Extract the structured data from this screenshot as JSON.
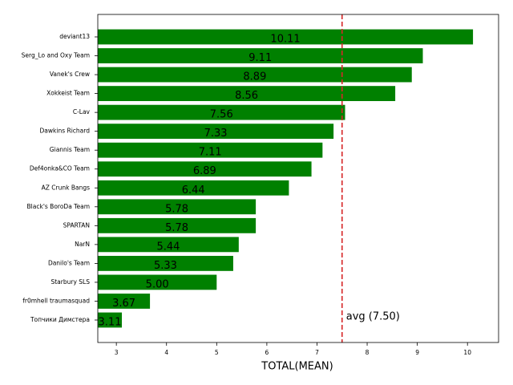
{
  "chart_data": {
    "type": "barh",
    "xlabel": "TOTAL(MEAN)",
    "categories": [
      "deviant13",
      "Serg_Lo and Oxy Team",
      "Vanek's Crew",
      "Xokkeist Team",
      "C-Lav",
      "Dawkins Richard",
      "Giannis Team",
      "Def4onka&CO Team",
      "AZ Crunk Bangs",
      "Black's BoroDa Team",
      "SPARTAN",
      "NarN",
      "Danilo's Team",
      "Starbury SLS",
      "fr0mhell traumasquad",
      "Топчики Димстера"
    ],
    "values": [
      10.11,
      9.11,
      8.89,
      8.56,
      7.56,
      7.33,
      7.11,
      6.89,
      6.44,
      5.78,
      5.78,
      5.44,
      5.33,
      5.0,
      3.67,
      3.11
    ],
    "value_labels": [
      "10.11",
      "9.11",
      "8.89",
      "8.56",
      "7.56",
      "7.33",
      "7.11",
      "6.89",
      "6.44",
      "5.78",
      "5.78",
      "5.44",
      "5.33",
      "5.00",
      "3.67",
      "3.11"
    ],
    "color": "#008000",
    "xlim": [
      2.63,
      10.62
    ],
    "xticks": [
      3,
      4,
      5,
      6,
      7,
      8,
      9,
      10
    ],
    "avg_line": {
      "value": 7.5,
      "label": "avg (7.50)",
      "color": "#d62728"
    }
  }
}
